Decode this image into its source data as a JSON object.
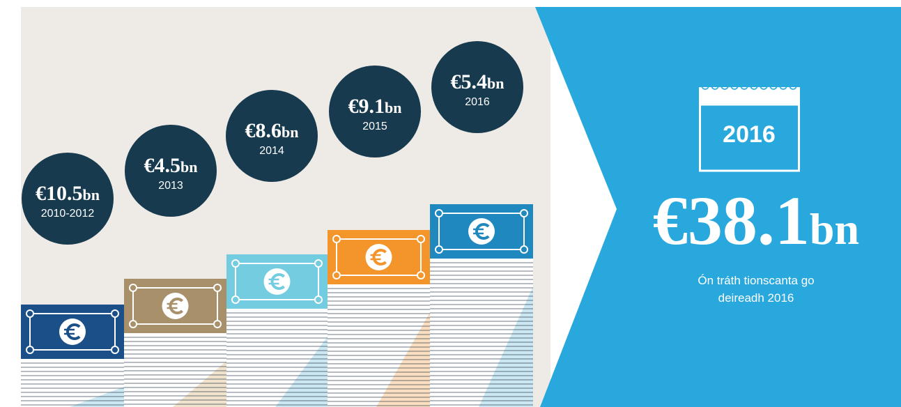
{
  "items": [
    {
      "amount": "€10.5",
      "unit": "bn",
      "period": "2010-2012"
    },
    {
      "amount": "€4.5",
      "unit": "bn",
      "period": "2013"
    },
    {
      "amount": "€8.6",
      "unit": "bn",
      "period": "2014"
    },
    {
      "amount": "€9.1",
      "unit": "bn",
      "period": "2015"
    },
    {
      "amount": "€5.4",
      "unit": "bn",
      "period": "2016"
    }
  ],
  "calendar_year": "2016",
  "total": {
    "amount": "€38.1",
    "unit": "bn"
  },
  "caption": [
    "Ón tráth tionscanta go",
    "deireadh 2016"
  ]
}
